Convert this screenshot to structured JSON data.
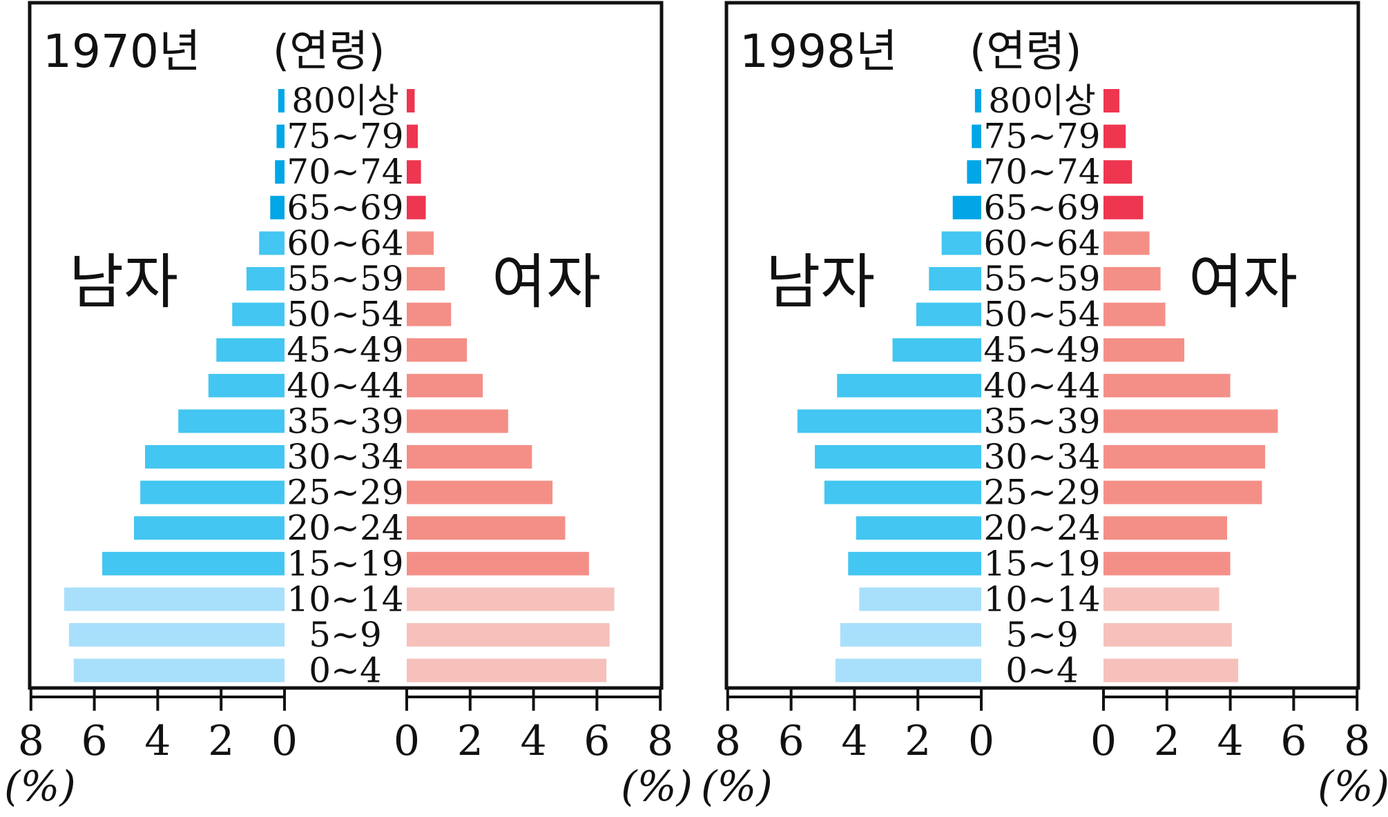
{
  "colors": {
    "male_base": "#43c6f1",
    "male_light": "#a8e0fb",
    "male_dark": "#00a6e6",
    "female_base": "#f48f87",
    "female_light": "#f7c1bb",
    "female_dark": "#ee3650",
    "frame": "#111111"
  },
  "chart_data": [
    {
      "type": "bar",
      "title": "1970년",
      "age_header": "(연령)",
      "male_label": "남자",
      "female_label": "여자",
      "unit_left": "(%)",
      "unit_right": "(%)",
      "categories": [
        "80이상",
        "75~79",
        "70~74",
        "65~69",
        "60~64",
        "55~59",
        "50~54",
        "45~49",
        "40~44",
        "35~39",
        "30~34",
        "25~29",
        "20~24",
        "15~19",
        "10~14",
        "5~9",
        "0~4"
      ],
      "xlim": [
        0,
        8
      ],
      "x_ticks": [
        "0",
        "2",
        "4",
        "6",
        "8"
      ],
      "series": [
        {
          "name": "남자",
          "values": [
            0.2,
            0.25,
            0.3,
            0.45,
            0.8,
            1.2,
            1.65,
            2.15,
            2.4,
            3.35,
            4.4,
            4.55,
            4.75,
            5.75,
            6.95,
            6.8,
            6.65
          ]
        },
        {
          "name": "여자",
          "values": [
            0.25,
            0.35,
            0.45,
            0.6,
            0.85,
            1.2,
            1.4,
            1.9,
            2.4,
            3.2,
            3.95,
            4.6,
            5.0,
            5.75,
            6.55,
            6.4,
            6.3
          ]
        }
      ]
    },
    {
      "type": "bar",
      "title": "1998년",
      "age_header": "(연령)",
      "male_label": "남자",
      "female_label": "여자",
      "unit_left": "(%)",
      "unit_right": "(%)",
      "categories": [
        "80이상",
        "75~79",
        "70~74",
        "65~69",
        "60~64",
        "55~59",
        "50~54",
        "45~49",
        "40~44",
        "35~39",
        "30~34",
        "25~29",
        "20~24",
        "15~19",
        "10~14",
        "5~9",
        "0~4"
      ],
      "xlim": [
        0,
        8
      ],
      "x_ticks": [
        "0",
        "2",
        "4",
        "6",
        "8"
      ],
      "series": [
        {
          "name": "남자",
          "values": [
            0.2,
            0.3,
            0.45,
            0.9,
            1.25,
            1.65,
            2.05,
            2.8,
            4.55,
            5.8,
            5.25,
            4.95,
            3.95,
            4.2,
            3.85,
            4.45,
            4.6
          ]
        },
        {
          "name": "여자",
          "values": [
            0.5,
            0.7,
            0.9,
            1.25,
            1.45,
            1.8,
            1.95,
            2.55,
            4.0,
            5.5,
            5.1,
            5.0,
            3.9,
            4.0,
            3.65,
            4.05,
            4.25
          ]
        }
      ]
    }
  ]
}
